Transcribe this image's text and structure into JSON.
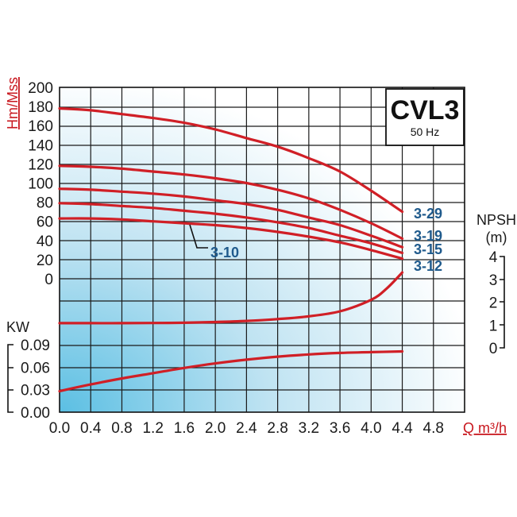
{
  "chart_data": {
    "type": "line",
    "title": "CVL3",
    "subtitle": "50 Hz",
    "xlabel": "Q m³/h",
    "x_ticks": [
      "0.0",
      "0.4",
      "0.8",
      "1.2",
      "1.6",
      "2.0",
      "2.4",
      "2.8",
      "3.2",
      "3.6",
      "4.0",
      "4.4",
      "4.8"
    ],
    "xlim": [
      0,
      5.2
    ],
    "head_axis": {
      "label": "Hm/Mss",
      "ticks": [
        "200",
        "180",
        "160",
        "140",
        "120",
        "100",
        "80",
        "60",
        "40",
        "20",
        "0"
      ],
      "ylim": [
        0,
        200
      ]
    },
    "npsh_axis": {
      "label": "NPSH (m)",
      "label_line1": "NPSH",
      "label_line2": "(m)",
      "ticks": [
        "4",
        "3",
        "2",
        "1",
        "0"
      ],
      "ylim": [
        0,
        4
      ]
    },
    "power_axis": {
      "label": "KW",
      "ticks": [
        "0.09",
        "0.06",
        "0.03",
        "0.00"
      ],
      "ylim": [
        0,
        0.09
      ]
    },
    "head_series": [
      {
        "name": "3-29",
        "x": [
          0,
          0.4,
          0.8,
          1.2,
          1.6,
          2.0,
          2.4,
          2.8,
          3.2,
          3.6,
          4.0,
          4.4
        ],
        "values": [
          178,
          176,
          172,
          168,
          163,
          156,
          147,
          138,
          126,
          112,
          92,
          70
        ]
      },
      {
        "name": "3-19",
        "x": [
          0,
          0.4,
          0.8,
          1.2,
          1.6,
          2.0,
          2.4,
          2.8,
          3.2,
          3.6,
          4.0,
          4.4
        ],
        "values": [
          118,
          117,
          115,
          112,
          109,
          105,
          100,
          93,
          84,
          72,
          58,
          42
        ]
      },
      {
        "name": "3-15",
        "x": [
          0,
          0.4,
          0.8,
          1.2,
          1.6,
          2.0,
          2.4,
          2.8,
          3.2,
          3.6,
          4.0,
          4.4
        ],
        "values": [
          94,
          93,
          91,
          89,
          86,
          82,
          78,
          72,
          64,
          56,
          45,
          33
        ]
      },
      {
        "name": "3-12",
        "x": [
          0,
          0.4,
          0.8,
          1.2,
          1.6,
          2.0,
          2.4,
          2.8,
          3.2,
          3.6,
          4.0,
          4.4
        ],
        "values": [
          79,
          78,
          76,
          74,
          71,
          68,
          64,
          59,
          53,
          45,
          37,
          27
        ]
      },
      {
        "name": "3-10",
        "x": [
          0,
          0.4,
          0.8,
          1.2,
          1.6,
          2.0,
          2.4,
          2.8,
          3.2,
          3.6,
          4.0,
          4.4
        ],
        "values": [
          63,
          63,
          62,
          60,
          58,
          56,
          53,
          49,
          44,
          38,
          30,
          21
        ]
      }
    ],
    "npsh_series": {
      "x": [
        0,
        0.4,
        0.8,
        1.2,
        1.6,
        2.0,
        2.4,
        2.8,
        3.2,
        3.6,
        4.0,
        4.2,
        4.4
      ],
      "values": [
        1.08,
        1.08,
        1.08,
        1.09,
        1.1,
        1.13,
        1.18,
        1.26,
        1.38,
        1.6,
        2.1,
        2.6,
        3.3
      ]
    },
    "power_series": {
      "x": [
        0,
        0.4,
        0.8,
        1.2,
        1.6,
        2.0,
        2.4,
        2.8,
        3.2,
        3.6,
        4.0,
        4.4
      ],
      "values": [
        0.028,
        0.037,
        0.045,
        0.052,
        0.059,
        0.065,
        0.07,
        0.074,
        0.077,
        0.079,
        0.08,
        0.081
      ]
    },
    "grid": true,
    "colors": {
      "curve": "#d01f26",
      "label": "#1f5a8c",
      "axis_title": "#c8171e"
    }
  }
}
